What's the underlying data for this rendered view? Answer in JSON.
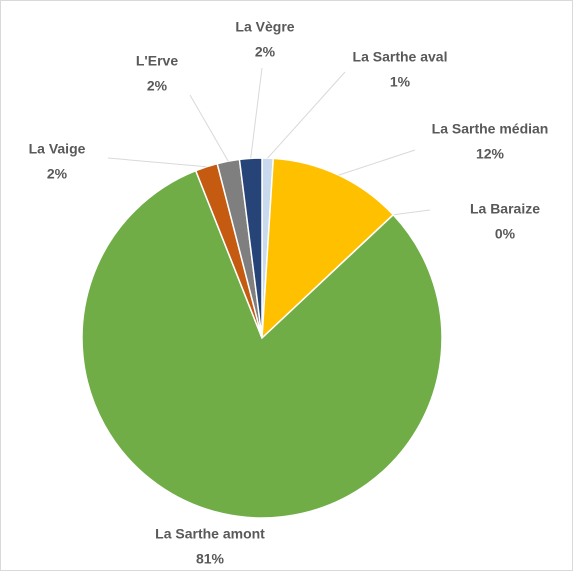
{
  "chart_data": {
    "type": "pie",
    "categories": [
      "La Sarthe aval",
      "La Sarthe médian",
      "La Baraize",
      "La Sarthe amont",
      "La Vaige",
      "L'Erve",
      "La Vègre"
    ],
    "values": [
      1,
      12,
      0,
      81,
      2,
      2,
      2
    ],
    "value_labels": [
      "1%",
      "12%",
      "0%",
      "81%",
      "2%",
      "2%",
      "2%"
    ],
    "colors": [
      "#c9d9ee",
      "#ffc000",
      "#5b9bd5",
      "#70ad47",
      "#c55a11",
      "#7f7f7f",
      "#264478"
    ]
  }
}
